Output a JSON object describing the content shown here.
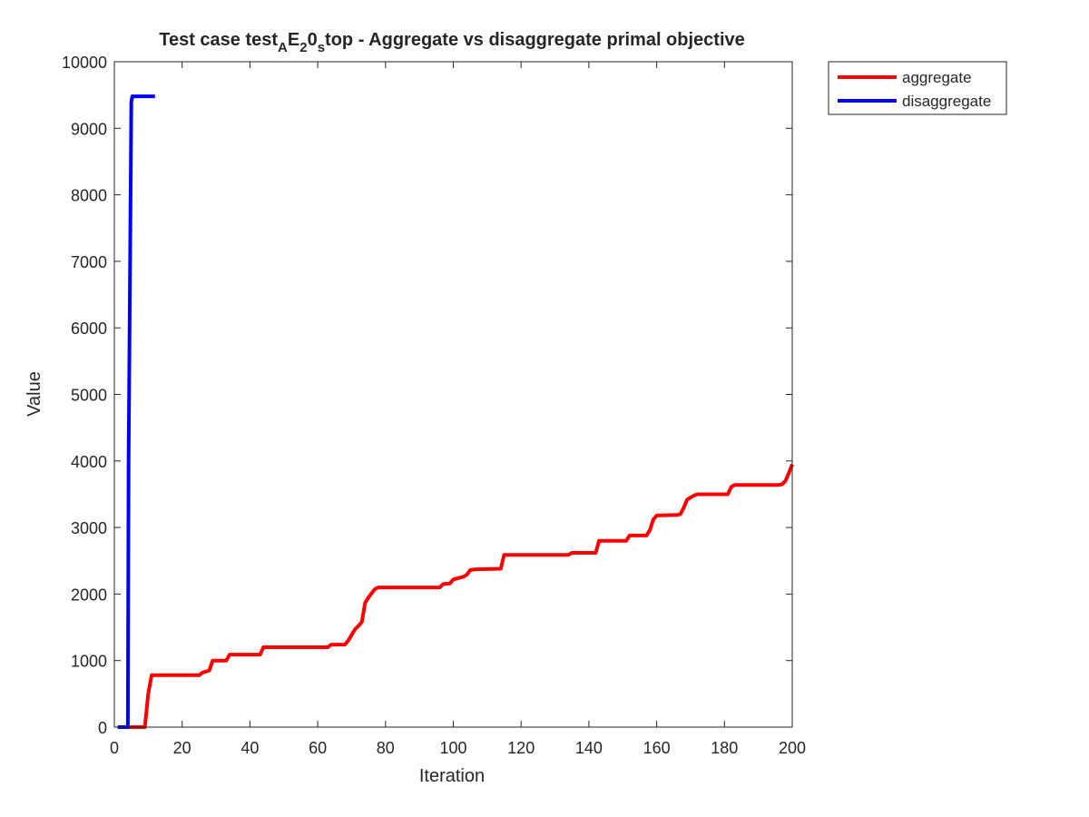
{
  "chart_data": {
    "type": "line",
    "title": {
      "prefix": "Test case test",
      "sub1": "A",
      "mid1": "E",
      "sub2": "2",
      "mid2": "0",
      "sub3": "s",
      "suffix": "top - Aggregate vs disaggregate primal objective"
    },
    "xlabel": "Iteration",
    "ylabel": "Value",
    "xlim": [
      0,
      200
    ],
    "ylim": [
      0,
      10000
    ],
    "xticks": [
      0,
      20,
      40,
      60,
      80,
      100,
      120,
      140,
      160,
      180,
      200
    ],
    "yticks": [
      0,
      1000,
      2000,
      3000,
      4000,
      5000,
      6000,
      7000,
      8000,
      9000,
      10000
    ],
    "grid": false,
    "legend_position": "outside-top-right",
    "series": [
      {
        "name": "aggregate",
        "color": "#ff0000",
        "x": [
          1,
          9,
          10,
          11,
          25,
          26,
          28,
          29,
          33,
          34,
          43,
          44,
          63,
          64,
          68,
          69,
          71,
          72,
          73,
          74,
          75,
          76,
          77,
          78,
          96,
          97,
          99,
          100,
          103,
          104,
          105,
          106,
          114,
          115,
          134,
          135,
          142,
          143,
          151,
          152,
          157,
          158,
          159,
          160,
          166,
          167,
          168,
          169,
          170,
          171,
          172,
          181,
          182,
          183,
          196,
          197,
          198,
          199,
          200
        ],
        "y": [
          0,
          0,
          500,
          780,
          780,
          820,
          850,
          1000,
          1000,
          1090,
          1090,
          1200,
          1200,
          1240,
          1240,
          1300,
          1470,
          1520,
          1580,
          1870,
          1950,
          2020,
          2080,
          2100,
          2100,
          2150,
          2160,
          2220,
          2260,
          2290,
          2360,
          2370,
          2380,
          2590,
          2590,
          2620,
          2620,
          2800,
          2800,
          2880,
          2880,
          2960,
          3120,
          3180,
          3190,
          3200,
          3300,
          3420,
          3450,
          3480,
          3500,
          3500,
          3610,
          3640,
          3640,
          3650,
          3700,
          3820,
          3950
        ]
      },
      {
        "name": "disaggregate",
        "color": "#0000ff",
        "x": [
          1,
          4,
          4.2,
          5,
          5.3,
          12
        ],
        "y": [
          0,
          0,
          4000,
          9400,
          9480,
          9480
        ]
      }
    ]
  }
}
